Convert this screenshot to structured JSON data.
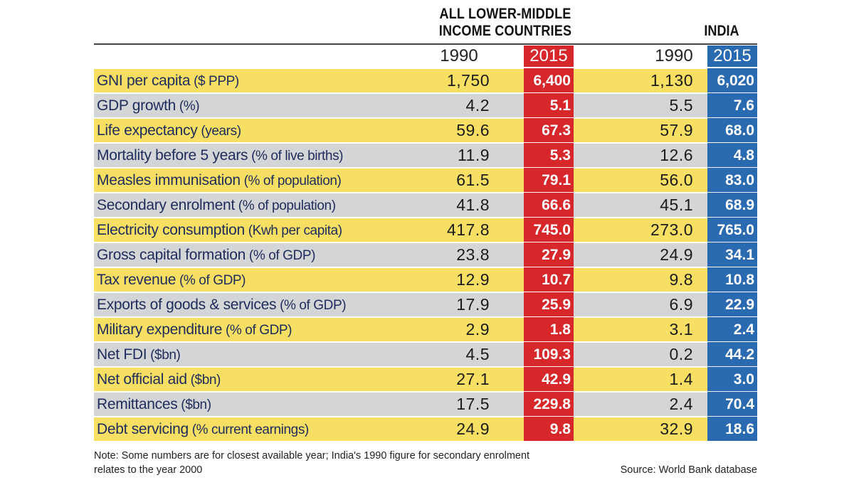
{
  "header": {
    "group1_line1": "ALL LOWER-MIDDLE",
    "group1_line2": "INCOME COUNTRIES",
    "group2": "INDIA"
  },
  "years": {
    "c1": "1990",
    "c2": "2015",
    "c3": "1990",
    "c4": "2015"
  },
  "rows": [
    {
      "label": "GNI per capita",
      "unit": " ($ PPP)",
      "v1": "1,750",
      "v2": "6,400",
      "v3": "1,130",
      "v4": "6,020"
    },
    {
      "label": "GDP growth",
      "unit": " (%)",
      "v1": "4.2",
      "v2": "5.1",
      "v3": "5.5",
      "v4": "7.6"
    },
    {
      "label": "Life expectancy",
      "unit": " (years)",
      "v1": "59.6",
      "v2": "67.3",
      "v3": "57.9",
      "v4": "68.0"
    },
    {
      "label": "Mortality before 5 years",
      "unit": " (% of live births)",
      "v1": "11.9",
      "v2": "5.3",
      "v3": "12.6",
      "v4": "4.8"
    },
    {
      "label": "Measles immunisation",
      "unit": " (% of population)",
      "v1": "61.5",
      "v2": "79.1",
      "v3": "56.0",
      "v4": "83.0"
    },
    {
      "label": "Secondary enrolment",
      "unit": " (% of population)",
      "v1": "41.8",
      "v2": "66.6",
      "v3": "45.1",
      "v4": "68.9"
    },
    {
      "label": "Electricity consumption",
      "unit": " (Kwh per capita)",
      "v1": "417.8",
      "v2": "745.0",
      "v3": "273.0",
      "v4": "765.0"
    },
    {
      "label": "Gross capital formation",
      "unit": " (% of GDP)",
      "v1": "23.8",
      "v2": "27.9",
      "v3": "24.9",
      "v4": "34.1"
    },
    {
      "label": "Tax revenue",
      "unit": " (% of GDP)",
      "v1": "12.9",
      "v2": "10.7",
      "v3": "9.8",
      "v4": "10.8"
    },
    {
      "label": "Exports of goods & services",
      "unit": " (% of GDP)",
      "v1": "17.9",
      "v2": "25.9",
      "v3": "6.9",
      "v4": "22.9"
    },
    {
      "label": "Military expenditure",
      "unit": " (% of GDP)",
      "v1": "2.9",
      "v2": "1.8",
      "v3": "3.1",
      "v4": "2.4"
    },
    {
      "label": "Net FDI",
      "unit": " ($bn)",
      "v1": "4.5",
      "v2": "109.3",
      "v3": "0.2",
      "v4": "44.2"
    },
    {
      "label": "Net official aid",
      "unit": " ($bn)",
      "v1": "27.1",
      "v2": "42.9",
      "v3": "1.4",
      "v4": "3.0"
    },
    {
      "label": "Remittances",
      "unit": " ($bn)",
      "v1": "17.5",
      "v2": "229.8",
      "v3": "2.4",
      "v4": "70.4"
    },
    {
      "label": "Debt servicing",
      "unit": " (% current earnings)",
      "v1": "24.9",
      "v2": "9.8",
      "v3": "32.9",
      "v4": "18.6"
    }
  ],
  "note_line1": "Note: Some numbers are for closest available year;  India's 1990 figure for secondary enrolment",
  "note_line2": "relates to the year 2000",
  "source": "Source: World Bank database",
  "colors": {
    "yellow_row": "#f6df63",
    "grey_row": "#d4d5d7",
    "red_col": "#d7272b",
    "blue_col": "#2a6ab1"
  }
}
